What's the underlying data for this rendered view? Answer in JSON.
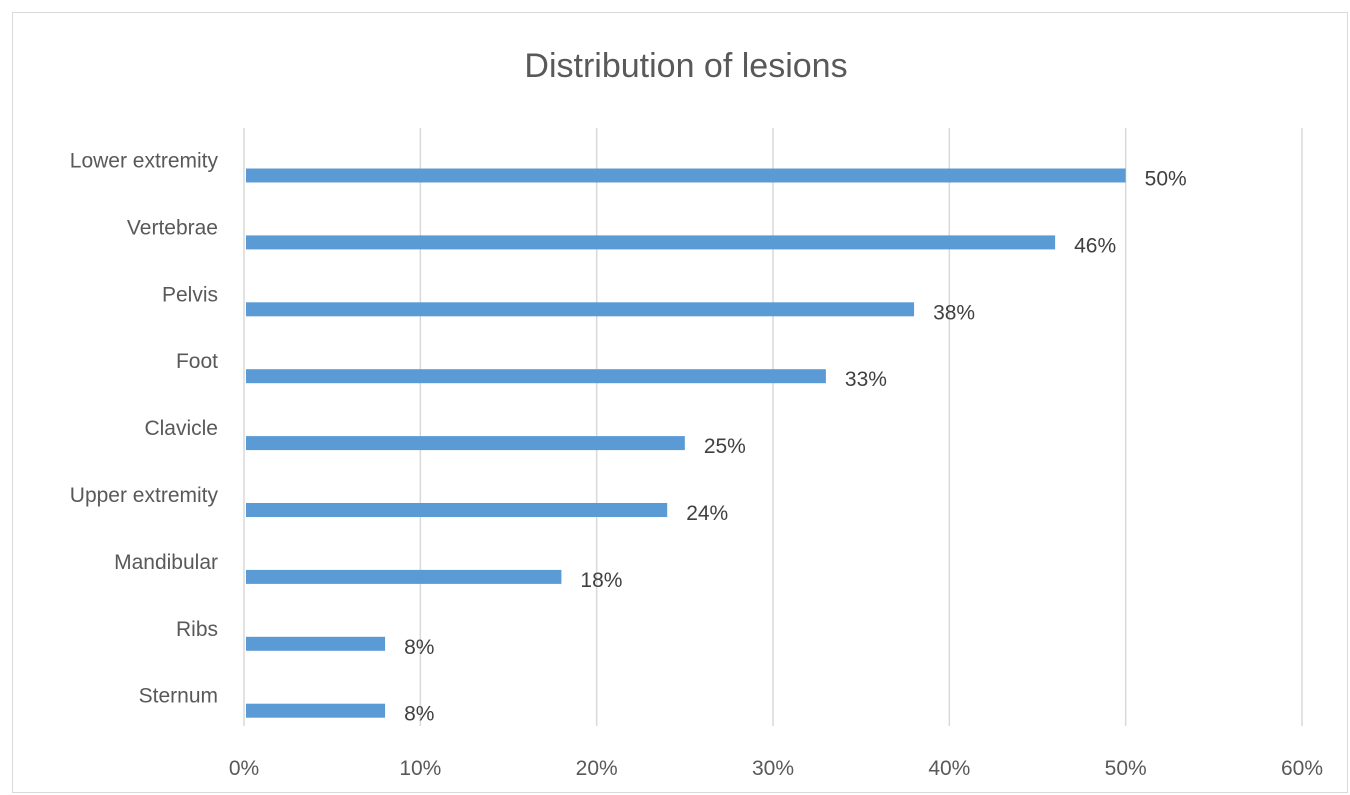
{
  "chart_data": {
    "type": "bar",
    "orientation": "horizontal",
    "title": "Distribution of lesions",
    "categories": [
      "Lower extremity",
      "Vertebrae",
      "Pelvis",
      "Foot",
      "Clavicle",
      "Upper extremity",
      "Mandibular",
      "Ribs",
      "Sternum"
    ],
    "values": [
      50,
      46,
      38,
      33,
      25,
      24,
      18,
      8,
      8
    ],
    "data_labels": [
      "50%",
      "46%",
      "38%",
      "33%",
      "25%",
      "24%",
      "18%",
      "8%",
      "8%"
    ],
    "xlim": [
      0,
      60
    ],
    "x_ticks": [
      "0%",
      "10%",
      "20%",
      "30%",
      "40%",
      "50%",
      "60%"
    ],
    "grid": true,
    "legend": "none",
    "bar_color": "#5b9bd5"
  }
}
